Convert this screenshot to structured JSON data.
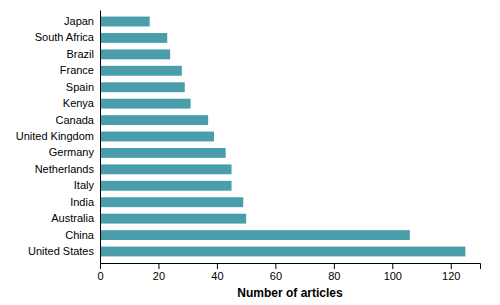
{
  "chart_data": {
    "type": "bar",
    "orientation": "horizontal",
    "categories": [
      "United States",
      "China",
      "Australia",
      "India",
      "Italy",
      "Netherlands",
      "Germany",
      "United Kingdom",
      "Canada",
      "Kenya",
      "Spain",
      "France",
      "Brazil",
      "South Africa",
      "Japan"
    ],
    "values": [
      125,
      106,
      50,
      49,
      45,
      45,
      43,
      39,
      37,
      31,
      29,
      28,
      24,
      23,
      17
    ],
    "color": "#4a9eaa",
    "xlabel": "Number of articles",
    "xlim": [
      0,
      130
    ],
    "xticks": [
      0,
      20,
      40,
      60,
      80,
      100,
      120
    ]
  }
}
